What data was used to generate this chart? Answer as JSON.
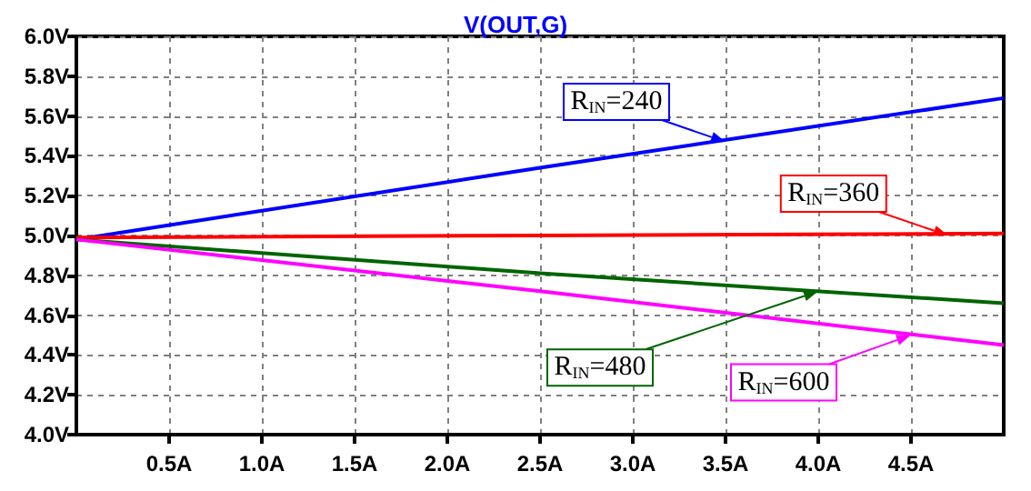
{
  "chart_data": {
    "type": "line",
    "title": "V(OUT,G)",
    "x": [
      0,
      2.5,
      5
    ],
    "series": [
      {
        "color": "#0000ff",
        "values": [
          4.98,
          5.34,
          5.69
        ]
      },
      {
        "color": "#ff0000",
        "values": [
          4.99,
          5.0,
          5.01
        ]
      },
      {
        "color": "#006400",
        "values": [
          4.98,
          4.81,
          4.66
        ]
      },
      {
        "color": "#ff00ff",
        "values": [
          4.98,
          4.72,
          4.45
        ]
      }
    ],
    "xlim": [
      0,
      5
    ],
    "xticks": [
      {
        "value": 0.5,
        "label": "0.5A"
      },
      {
        "value": 1,
        "label": "1.0A"
      },
      {
        "value": 1.5,
        "label": "1.5A"
      },
      {
        "value": 2,
        "label": "2.0A"
      },
      {
        "value": 2.5,
        "label": "2.5A"
      },
      {
        "value": 3,
        "label": "3.0A"
      },
      {
        "value": 3.5,
        "label": "3.5A"
      },
      {
        "value": 4,
        "label": "4.0A"
      },
      {
        "value": 4.5,
        "label": "4.5A"
      }
    ],
    "ylim": [
      4,
      6
    ],
    "yticks": [
      {
        "value": 4,
        "label": "4.0V"
      },
      {
        "value": 4.2,
        "label": "4.2V"
      },
      {
        "value": 4.4,
        "label": "4.4V"
      },
      {
        "value": 4.6,
        "label": "4.6V"
      },
      {
        "value": 4.8,
        "label": "4.8V"
      },
      {
        "value": 5,
        "label": "5.0V"
      },
      {
        "value": 5.2,
        "label": "5.2V"
      },
      {
        "value": 5.4,
        "label": "5.4V"
      },
      {
        "value": 5.6,
        "label": "5.6V"
      },
      {
        "value": 5.8,
        "label": "5.8V"
      },
      {
        "value": 6,
        "label": "6.0V"
      }
    ],
    "grid": true,
    "marker": "none",
    "line_style": "solid",
    "annotations": [
      {
        "text": "R$_{IN}$=240",
        "x": 3.5,
        "y": 5.47
      },
      {
        "text": "R$_{IN}$=360",
        "x": 4.7,
        "y": 5.0
      },
      {
        "text": "R$_{IN}$=480",
        "x": 4.0,
        "y": 4.72
      },
      {
        "text": "R$_{IN}$=600",
        "x": 4.5,
        "y": 4.5
      }
    ]
  }
}
